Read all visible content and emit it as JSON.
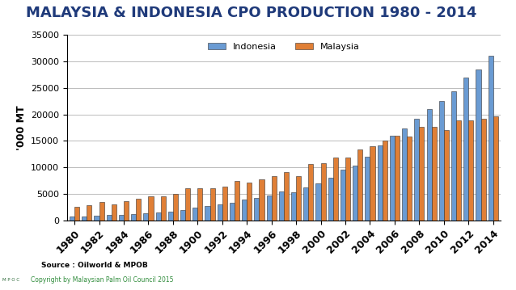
{
  "chart_data": {
    "type": "bar",
    "title": "MALAYSIA & INDONESIA CPO PRODUCTION 1980 - 2014",
    "y_label": "'000 MT",
    "source": "Source : Oilworld & MPOB",
    "footer": "Copyright by Malaysian Palm Oil Council 2015",
    "logo": "M P O C",
    "categories": [
      "1980",
      null,
      "1982",
      null,
      "1984",
      null,
      "1986",
      null,
      "1988",
      null,
      "1900",
      null,
      "1992",
      null,
      "1994",
      null,
      "1996",
      null,
      "1998",
      null,
      "2000",
      null,
      "2002",
      null,
      "2004",
      null,
      "2006",
      null,
      "2008",
      null,
      "2010",
      null,
      "2012",
      null,
      "2014"
    ],
    "series": [
      {
        "name": "Indonesia",
        "color": "#6a9bd3",
        "values": [
          700,
          800,
          850,
          1000,
          1100,
          1200,
          1350,
          1500,
          1700,
          2000,
          2400,
          2650,
          3000,
          3400,
          4000,
          4250,
          4700,
          5400,
          5300,
          6200,
          7000,
          8000,
          9600,
          10400,
          12000,
          14100,
          16000,
          17300,
          19200,
          21000,
          22500,
          24300,
          26900,
          28500,
          31000
        ]
      },
      {
        "name": "Malaysia",
        "color": "#e07f36",
        "values": [
          2600,
          2800,
          3500,
          3000,
          3700,
          4100,
          4500,
          4500,
          5000,
          6000,
          6100,
          6100,
          6400,
          7400,
          7200,
          7800,
          8400,
          9100,
          8300,
          10600,
          10800,
          11800,
          11900,
          13400,
          14000,
          15000,
          15900,
          15800,
          17700,
          17600,
          17000,
          18900,
          18800,
          19200,
          19700
        ]
      }
    ],
    "ylim": [
      0,
      35000
    ],
    "yticks": [
      0,
      5000,
      10000,
      15000,
      20000,
      25000,
      30000,
      35000
    ],
    "grid": true,
    "legend": "upper center"
  }
}
